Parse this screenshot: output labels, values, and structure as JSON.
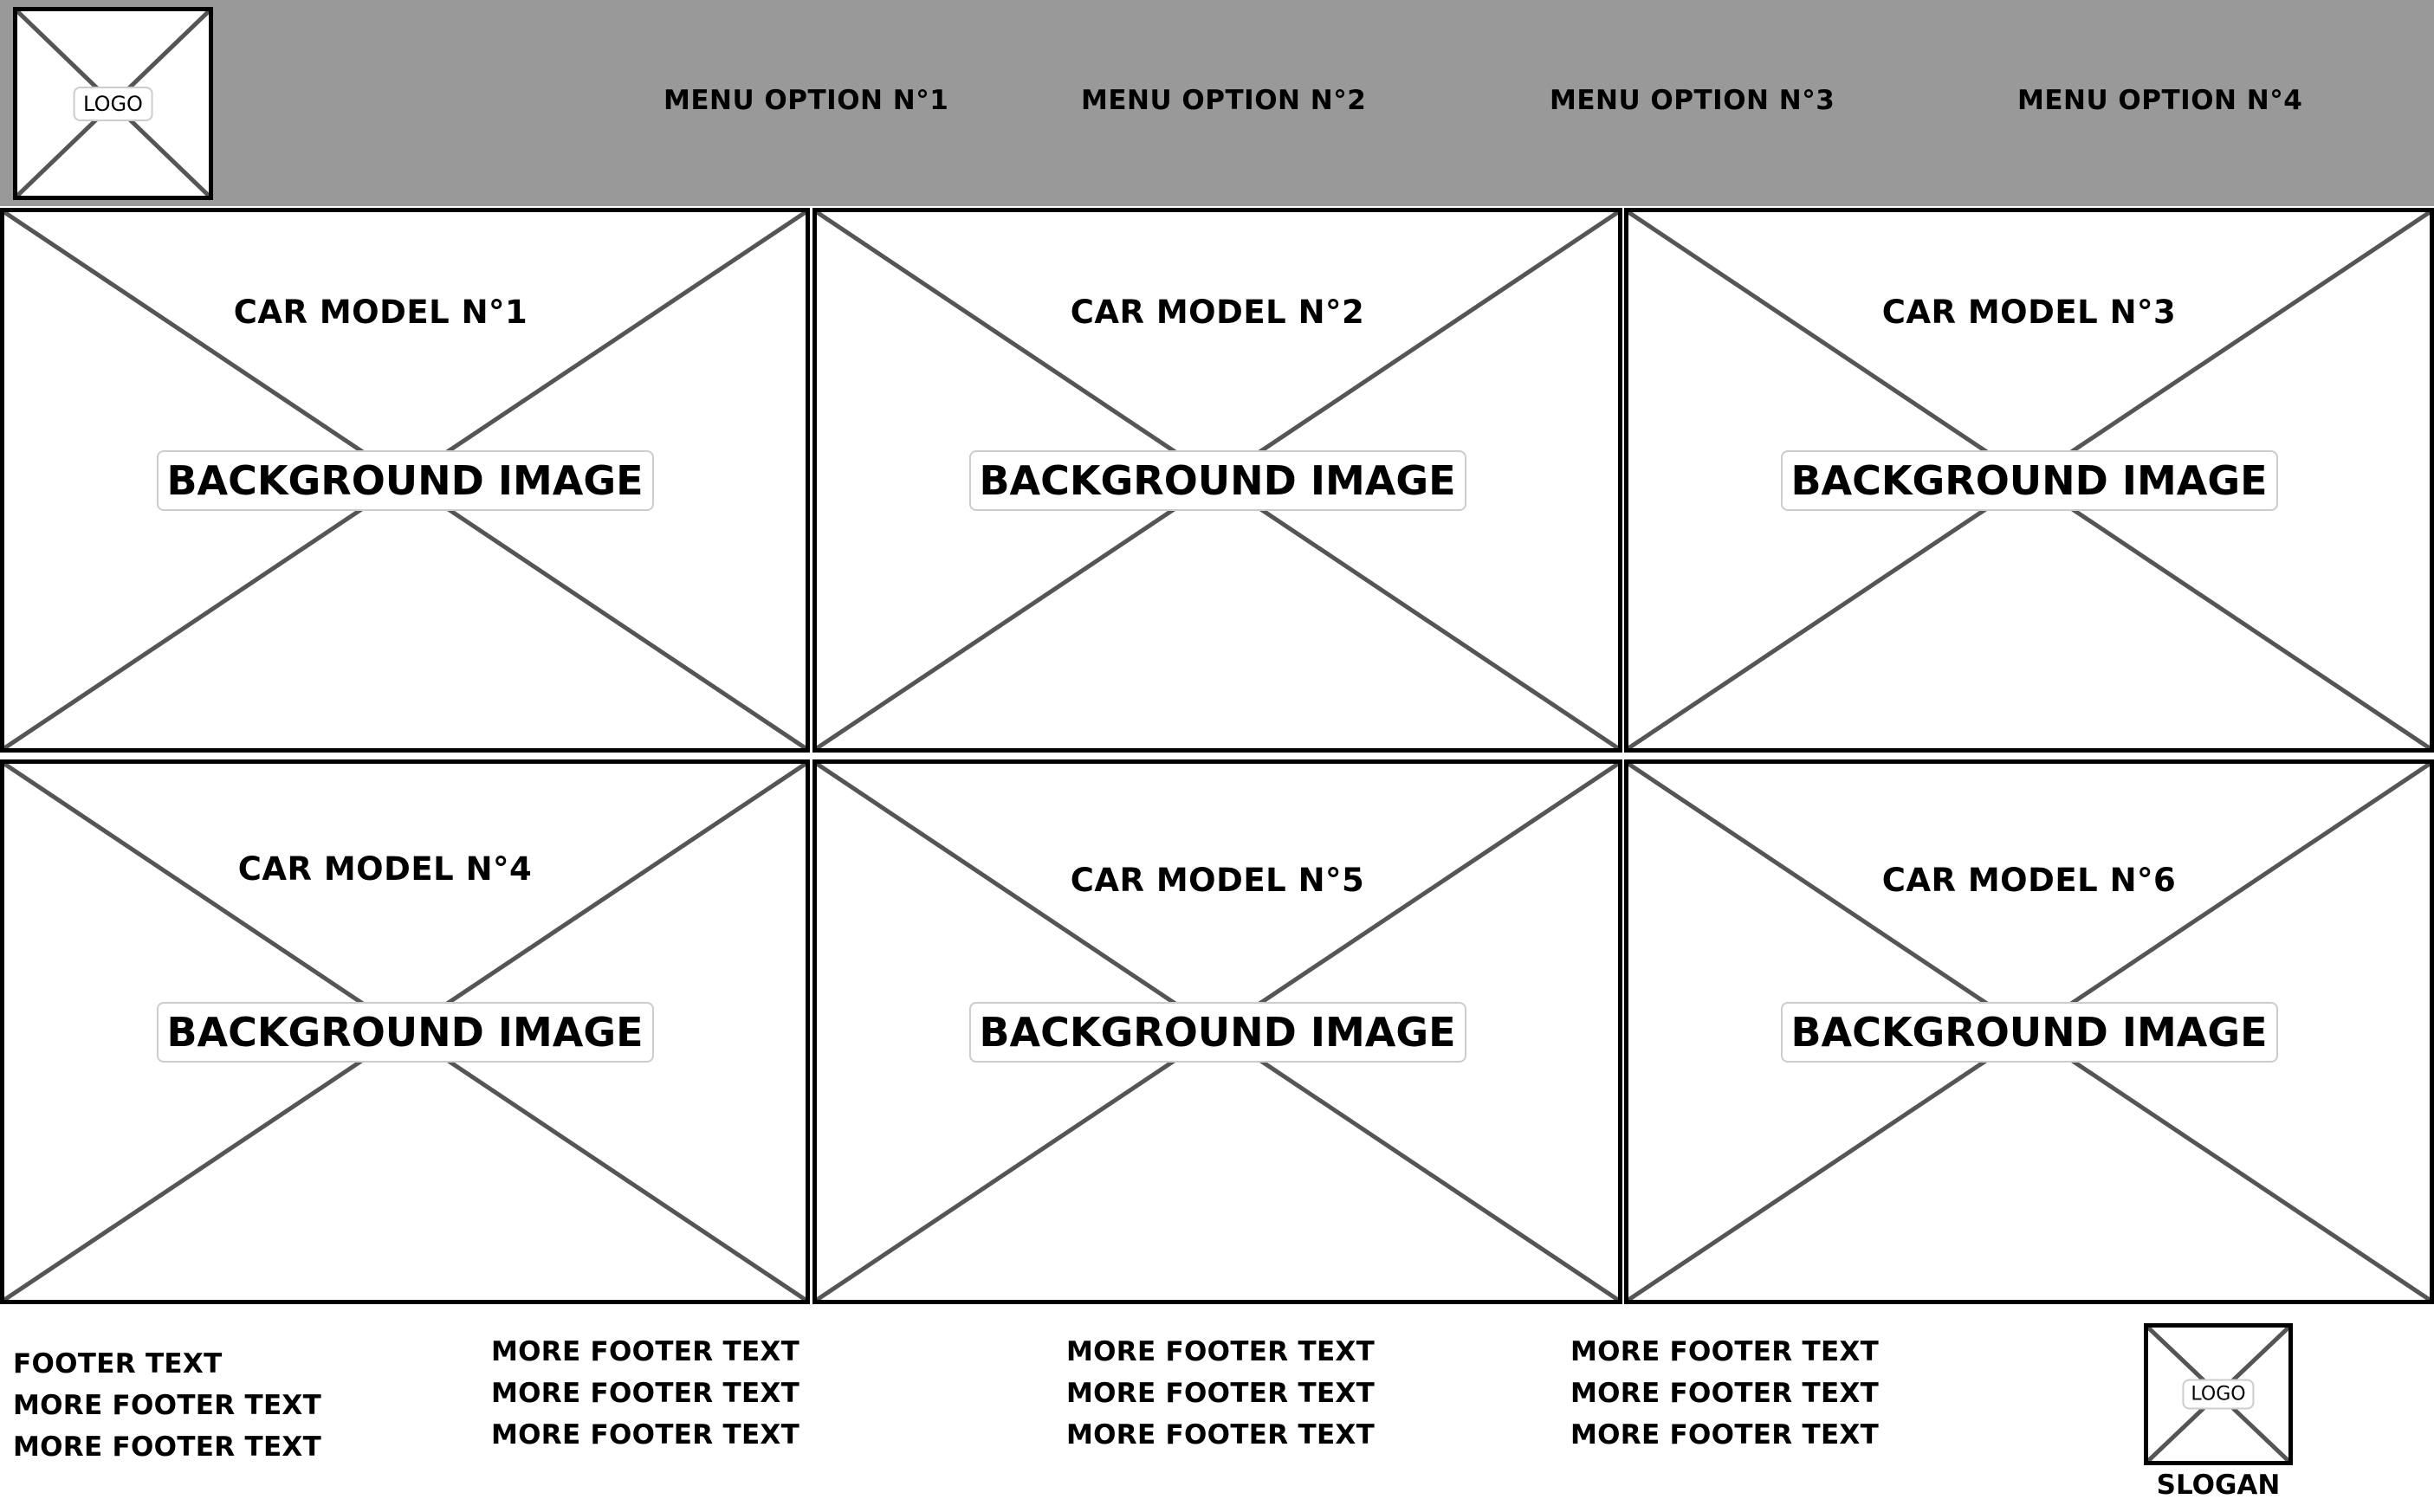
{
  "header": {
    "logo_label": "LOGO",
    "menu": [
      {
        "label": "MENU OPTION N°1"
      },
      {
        "label": "MENU OPTION N°2"
      },
      {
        "label": "MENU OPTION N°3"
      },
      {
        "label": "MENU OPTION N°4"
      }
    ]
  },
  "cards": [
    {
      "title": "CAR MODEL N°1",
      "image_label": "BACKGROUND IMAGE"
    },
    {
      "title": "CAR MODEL N°2",
      "image_label": "BACKGROUND IMAGE"
    },
    {
      "title": "CAR MODEL N°3",
      "image_label": "BACKGROUND IMAGE"
    },
    {
      "title": "CAR MODEL N°4",
      "image_label": "BACKGROUND IMAGE"
    },
    {
      "title": "CAR MODEL N°5",
      "image_label": "BACKGROUND IMAGE"
    },
    {
      "title": "CAR MODEL N°6",
      "image_label": "BACKGROUND IMAGE"
    }
  ],
  "footer": {
    "columns": [
      [
        "FOOTER TEXT",
        "MORE FOOTER TEXT",
        "MORE FOOTER TEXT"
      ],
      [
        "MORE FOOTER TEXT",
        "MORE FOOTER TEXT",
        "MORE FOOTER TEXT"
      ],
      [
        "MORE FOOTER TEXT",
        "MORE FOOTER TEXT",
        "MORE FOOTER TEXT"
      ],
      [
        "MORE FOOTER TEXT",
        "MORE FOOTER TEXT",
        "MORE FOOTER TEXT"
      ]
    ],
    "logo_label": "LOGO",
    "slogan": "SLOGAN"
  }
}
